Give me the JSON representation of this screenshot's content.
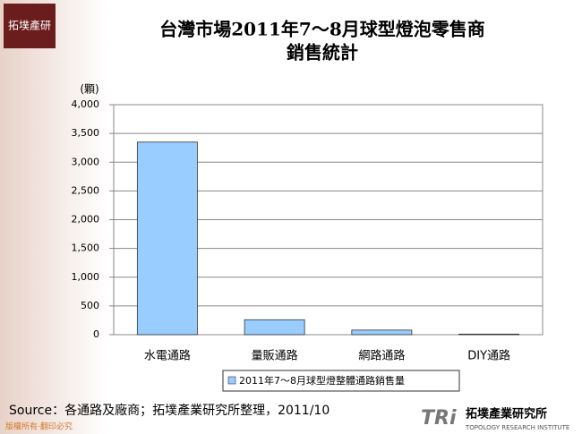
{
  "logo": {
    "text": "拓墣產研"
  },
  "chart_data": {
    "type": "bar",
    "title_lines": [
      "台灣市場2011年7～8月球型燈泡零售商",
      "銷售統計"
    ],
    "y_unit": "(顆)",
    "categories": [
      "水電通路",
      "量販通路",
      "網路通路",
      "DIY通路"
    ],
    "series": [
      {
        "name": "2011年7～8月球型燈整體通路銷售量",
        "color": "#99ccff",
        "values": [
          3350,
          260,
          80,
          10
        ]
      }
    ],
    "ylim": [
      0,
      4000
    ],
    "yticks": [
      0,
      500,
      {
        "value": 1000,
        "label": "1,000"
      },
      {
        "value": 1500,
        "label": "1,500"
      },
      {
        "value": 2000,
        "label": "2,000"
      },
      {
        "value": 2500,
        "label": "2,500"
      },
      {
        "value": 3000,
        "label": "3,000"
      },
      {
        "value": 3500,
        "label": "3,500"
      },
      {
        "value": 4000,
        "label": "4,000"
      }
    ],
    "grid": true,
    "legend": "bottom"
  },
  "source": "Source：各通路及廠商；拓墣產業研究所整理，2011/10",
  "footer": {
    "copyright": "版權所有‧翻印必究",
    "brand": "TRi",
    "brand_name": "拓墣產業研究所",
    "brand_english": "TOPOLOGY RESEARCH INSTITUTE"
  }
}
